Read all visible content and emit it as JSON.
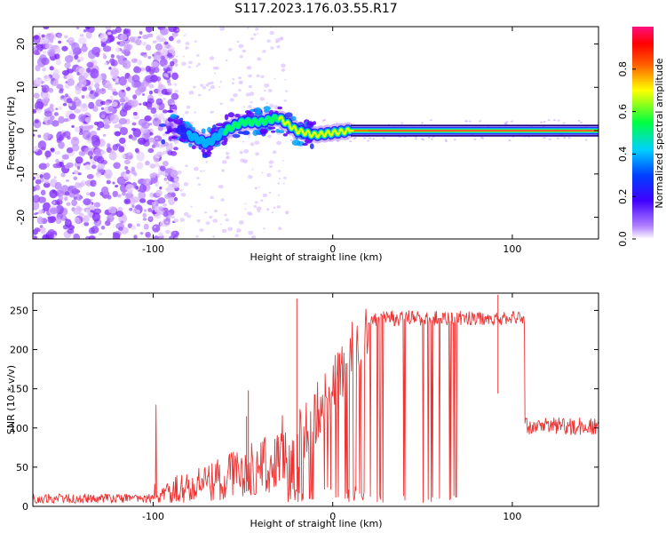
{
  "figure": {
    "title": "S117.2023.176.03.55.R17"
  },
  "chart_data": [
    {
      "type": "heatmap",
      "title": "S117.2023.176.03.55.R17",
      "xlabel": "Height of straight line (km)",
      "ylabel": "Frequency (Hz)",
      "xlim": [
        -167,
        148
      ],
      "ylim": [
        -25,
        24
      ],
      "x_ticks": [
        -100,
        0,
        100
      ],
      "y_ticks": [
        -20,
        -10,
        0,
        10,
        20
      ],
      "colorbar": {
        "label": "Normalized spectral amplitude",
        "ticks": [
          "0.0",
          "0.2",
          "0.4",
          "0.6",
          "0.8"
        ],
        "range": [
          0,
          1
        ],
        "colors": [
          "#ffffff",
          "#8000ff",
          "#0000ff",
          "#00c8ff",
          "#00ff40",
          "#ffff00",
          "#ff8000",
          "#ff0000",
          "#ff1493"
        ]
      },
      "ridge": {
        "description_points": [
          {
            "x": -92,
            "y": 3
          },
          {
            "x": -85,
            "y": 0
          },
          {
            "x": -70,
            "y": -3
          },
          {
            "x": -60,
            "y": 0
          },
          {
            "x": -50,
            "y": 2
          },
          {
            "x": -40,
            "y": 2
          },
          {
            "x": -30,
            "y": 3
          },
          {
            "x": -20,
            "y": 0
          },
          {
            "x": -10,
            "y": -1
          },
          {
            "x": 0,
            "y": -0.5
          },
          {
            "x": 10,
            "y": 0
          },
          {
            "x": 148,
            "y": 0
          }
        ]
      },
      "grid": false
    },
    {
      "type": "line",
      "xlabel": "Height of straight line (km)",
      "ylabel": "SNR (10 * v/v)",
      "xlim": [
        -167,
        148
      ],
      "ylim": [
        0,
        272
      ],
      "x_ticks": [
        -100,
        0,
        100
      ],
      "y_ticks": [
        0,
        50,
        100,
        150,
        200,
        250
      ],
      "color": "#ee3333",
      "segments": [
        {
          "x": [
            -167,
            -100
          ],
          "level": 10
        },
        {
          "x": [
            -100,
            -60
          ],
          "level": 18
        },
        {
          "x": [
            -60,
            -25
          ],
          "level": 30
        },
        {
          "x": [
            -25,
            20
          ],
          "level": 160
        },
        {
          "x": [
            20,
            107
          ],
          "level": 240
        },
        {
          "x": [
            107,
            148
          ],
          "level": 100
        }
      ],
      "peaks": [
        {
          "x": -48,
          "y": 115
        },
        {
          "x": -47,
          "y": 148
        },
        {
          "x": -20,
          "y": 265
        },
        {
          "x": 92,
          "y": 270
        }
      ],
      "grid": false
    }
  ]
}
